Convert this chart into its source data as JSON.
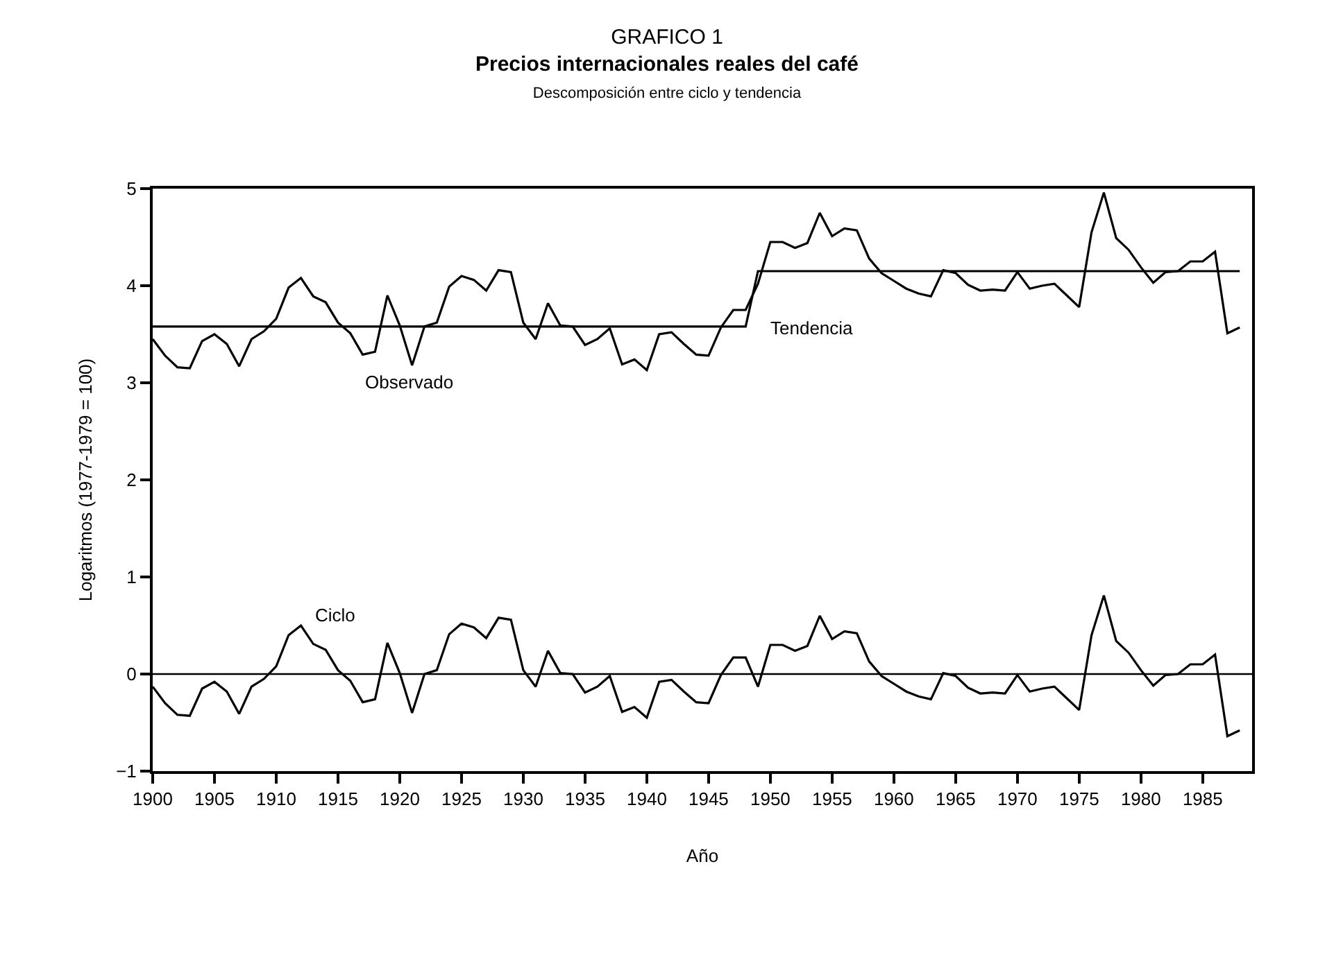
{
  "chart_data": {
    "type": "line",
    "title": "GRAFICO 1",
    "subtitle": "Precios internacionales reales del café\nDescomposición entre ciclo y tendencia",
    "xlabel": "Año",
    "ylabel": "Logaritmos (1977-1979 = 100)",
    "xlim": [
      1900,
      1989
    ],
    "ylim": [
      -1,
      5
    ],
    "xticks": [
      1900,
      1905,
      1910,
      1915,
      1920,
      1925,
      1930,
      1935,
      1940,
      1945,
      1950,
      1955,
      1960,
      1965,
      1970,
      1975,
      1980,
      1985
    ],
    "yticks": [
      {
        "value": -1,
        "label": "−1"
      },
      0,
      1,
      2,
      3,
      4,
      5
    ],
    "grid": false,
    "marker": "none",
    "line_style": "solid",
    "series": [
      {
        "color": "#000000",
        "x": [
          1900,
          1901,
          1902,
          1903,
          1904,
          1905,
          1906,
          1907,
          1908,
          1909,
          1910,
          1911,
          1912,
          1913,
          1914,
          1915,
          1916,
          1917,
          1918,
          1919,
          1920,
          1921,
          1922,
          1923,
          1924,
          1925,
          1926,
          1927,
          1928,
          1929,
          1930,
          1931,
          1932,
          1933,
          1934,
          1935,
          1936,
          1937,
          1938,
          1939,
          1940,
          1941,
          1942,
          1943,
          1944,
          1945,
          1946,
          1947,
          1948,
          1949,
          1950,
          1951,
          1952,
          1953,
          1954,
          1955,
          1956,
          1957,
          1958,
          1959,
          1960,
          1961,
          1962,
          1963,
          1964,
          1965,
          1966,
          1967,
          1968,
          1969,
          1970,
          1971,
          1972,
          1973,
          1974,
          1975,
          1976,
          1977,
          1978,
          1979,
          1980,
          1981,
          1982,
          1983,
          1984,
          1985,
          1986,
          1987,
          1988
        ],
        "values": [
          3.45,
          3.28,
          3.16,
          3.15,
          3.43,
          3.5,
          3.4,
          3.17,
          3.45,
          3.53,
          3.66,
          3.98,
          4.08,
          3.89,
          3.83,
          3.62,
          3.51,
          3.29,
          3.32,
          3.9,
          3.59,
          3.18,
          3.58,
          3.62,
          3.99,
          4.1,
          4.06,
          3.95,
          4.16,
          4.14,
          3.62,
          3.45,
          3.82,
          3.59,
          3.58,
          3.39,
          3.45,
          3.56,
          3.19,
          3.24,
          3.13,
          3.5,
          3.52,
          3.4,
          3.29,
          3.28,
          3.57,
          3.75,
          3.75,
          4.02,
          4.45,
          4.45,
          4.39,
          4.44,
          4.75,
          4.51,
          4.59,
          4.57,
          4.28,
          4.13,
          4.05,
          3.97,
          3.92,
          3.89,
          4.16,
          4.13,
          4.01,
          3.95,
          3.96,
          3.95,
          4.14,
          3.97,
          4.0,
          4.02,
          3.9,
          3.78,
          4.55,
          4.96,
          4.49,
          4.37,
          4.19,
          4.03,
          4.14,
          4.15,
          4.25,
          4.25,
          4.35,
          3.51,
          3.57
        ]
      },
      {
        "color": "#000000",
        "x": [
          1900,
          1948,
          1949,
          1988
        ],
        "values": [
          3.58,
          3.58,
          4.15,
          4.15
        ]
      },
      {
        "color": "#000000",
        "x": [
          1900,
          1901,
          1902,
          1903,
          1904,
          1905,
          1906,
          1907,
          1908,
          1909,
          1910,
          1911,
          1912,
          1913,
          1914,
          1915,
          1916,
          1917,
          1918,
          1919,
          1920,
          1921,
          1922,
          1923,
          1924,
          1925,
          1926,
          1927,
          1928,
          1929,
          1930,
          1931,
          1932,
          1933,
          1934,
          1935,
          1936,
          1937,
          1938,
          1939,
          1940,
          1941,
          1942,
          1943,
          1944,
          1945,
          1946,
          1947,
          1948,
          1949,
          1950,
          1951,
          1952,
          1953,
          1954,
          1955,
          1956,
          1957,
          1958,
          1959,
          1960,
          1961,
          1962,
          1963,
          1964,
          1965,
          1966,
          1967,
          1968,
          1969,
          1970,
          1971,
          1972,
          1973,
          1974,
          1975,
          1976,
          1977,
          1978,
          1979,
          1980,
          1981,
          1982,
          1983,
          1984,
          1985,
          1986,
          1987,
          1988
        ],
        "values": [
          -0.13,
          -0.3,
          -0.42,
          -0.43,
          -0.15,
          -0.08,
          -0.18,
          -0.41,
          -0.13,
          -0.05,
          0.08,
          0.4,
          0.5,
          0.31,
          0.25,
          0.04,
          -0.07,
          -0.29,
          -0.26,
          0.32,
          0.01,
          -0.4,
          0.0,
          0.04,
          0.41,
          0.52,
          0.48,
          0.37,
          0.58,
          0.56,
          0.04,
          -0.13,
          0.24,
          0.01,
          0.0,
          -0.19,
          -0.13,
          -0.02,
          -0.39,
          -0.34,
          -0.45,
          -0.08,
          -0.06,
          -0.18,
          -0.29,
          -0.3,
          -0.01,
          0.17,
          0.17,
          -0.13,
          0.3,
          0.3,
          0.24,
          0.29,
          0.6,
          0.36,
          0.44,
          0.42,
          0.13,
          -0.02,
          -0.1,
          -0.18,
          -0.23,
          -0.26,
          0.01,
          -0.02,
          -0.14,
          -0.2,
          -0.19,
          -0.2,
          -0.01,
          -0.18,
          -0.15,
          -0.13,
          -0.25,
          -0.37,
          0.4,
          0.81,
          0.34,
          0.22,
          0.04,
          -0.12,
          -0.01,
          0.0,
          0.1,
          0.1,
          0.2,
          -0.64,
          -0.58
        ]
      }
    ],
    "ref_lines": [
      {
        "axis": "y",
        "value": 0,
        "color": "#000000",
        "line_style": "solid"
      }
    ],
    "annotations": [
      "Observado",
      "Tendencia",
      "Ciclo"
    ]
  }
}
